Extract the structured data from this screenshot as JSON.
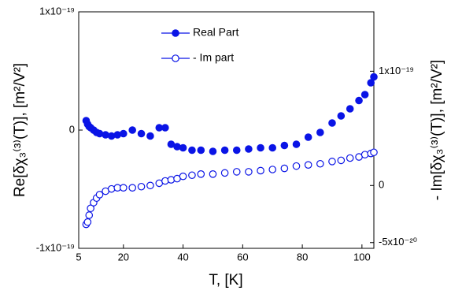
{
  "chart_data": {
    "type": "scatter",
    "x_label": "T, [K]",
    "y_label": "Re[δχ₃⁽³⁾(T)], [m²/V²]",
    "y2_label": "- Im[δχ₃⁽³⁾(T)], [m²/V²]",
    "x": [
      7.5,
      8,
      8.5,
      9,
      10,
      11,
      12,
      14,
      16,
      18,
      20,
      23,
      26,
      29,
      32,
      34,
      36,
      38,
      40,
      43,
      46,
      50,
      54,
      58,
      62,
      66,
      70,
      74,
      78,
      82,
      86,
      90,
      93,
      96,
      99,
      101,
      103,
      104
    ],
    "series": [
      {
        "name": "Real Part",
        "color": "#0a14e6",
        "filled": true,
        "values": [
          8e-21,
          5e-21,
          3e-21,
          2e-21,
          0,
          -2e-21,
          -3e-21,
          -4e-21,
          -5e-21,
          -4e-21,
          -3e-21,
          0,
          -3e-21,
          -5e-21,
          2e-21,
          2e-21,
          -1.2e-20,
          -1.4e-20,
          -1.5e-20,
          -1.7e-20,
          -1.7e-20,
          -1.8e-20,
          -1.7e-20,
          -1.7e-20,
          -1.6e-20,
          -1.5e-20,
          -1.5e-20,
          -1.3e-20,
          -1.2e-20,
          -6e-21,
          -2e-21,
          6e-21,
          1.2e-20,
          1.8e-20,
          2.5e-20,
          3e-20,
          4e-20,
          4.5e-20
        ]
      },
      {
        "name": "- Im part",
        "color": "#0a14e6",
        "filled": false,
        "axis": "y2",
        "values": [
          -3.4e-20,
          -3.2e-20,
          -2.6e-20,
          -2e-20,
          -1.5e-20,
          -1.1e-20,
          -8e-21,
          -5e-21,
          -3e-21,
          -2e-21,
          -2e-21,
          -2e-21,
          -1e-21,
          0,
          2e-21,
          4e-21,
          5e-21,
          6e-21,
          8e-21,
          9e-21,
          1e-20,
          1e-20,
          1.1e-20,
          1.2e-20,
          1.2e-20,
          1.3e-20,
          1.4e-20,
          1.5e-20,
          1.7e-20,
          1.8e-20,
          1.9e-20,
          2.1e-20,
          2.2e-20,
          2.4e-20,
          2.5e-20,
          2.7e-20,
          2.8e-20,
          2.9e-20
        ]
      }
    ],
    "xlim": [
      5,
      104
    ],
    "xticks": [
      5,
      20,
      40,
      60,
      80,
      100
    ],
    "ylim": [
      -1e-19,
      1e-19
    ],
    "yticks": [
      {
        "value": -1e-19,
        "label": "-1x10⁻¹⁹"
      },
      0,
      {
        "value": 1e-19,
        "label": "1x10⁻¹⁹"
      }
    ],
    "y2lim": [
      -5.5e-20,
      1.52e-19
    ],
    "y2ticks": [
      {
        "value": -5e-20,
        "label": "-5x10⁻²⁰"
      },
      0,
      {
        "value": 1e-19,
        "label": "1x10⁻¹⁹"
      }
    ],
    "legend": "top"
  }
}
